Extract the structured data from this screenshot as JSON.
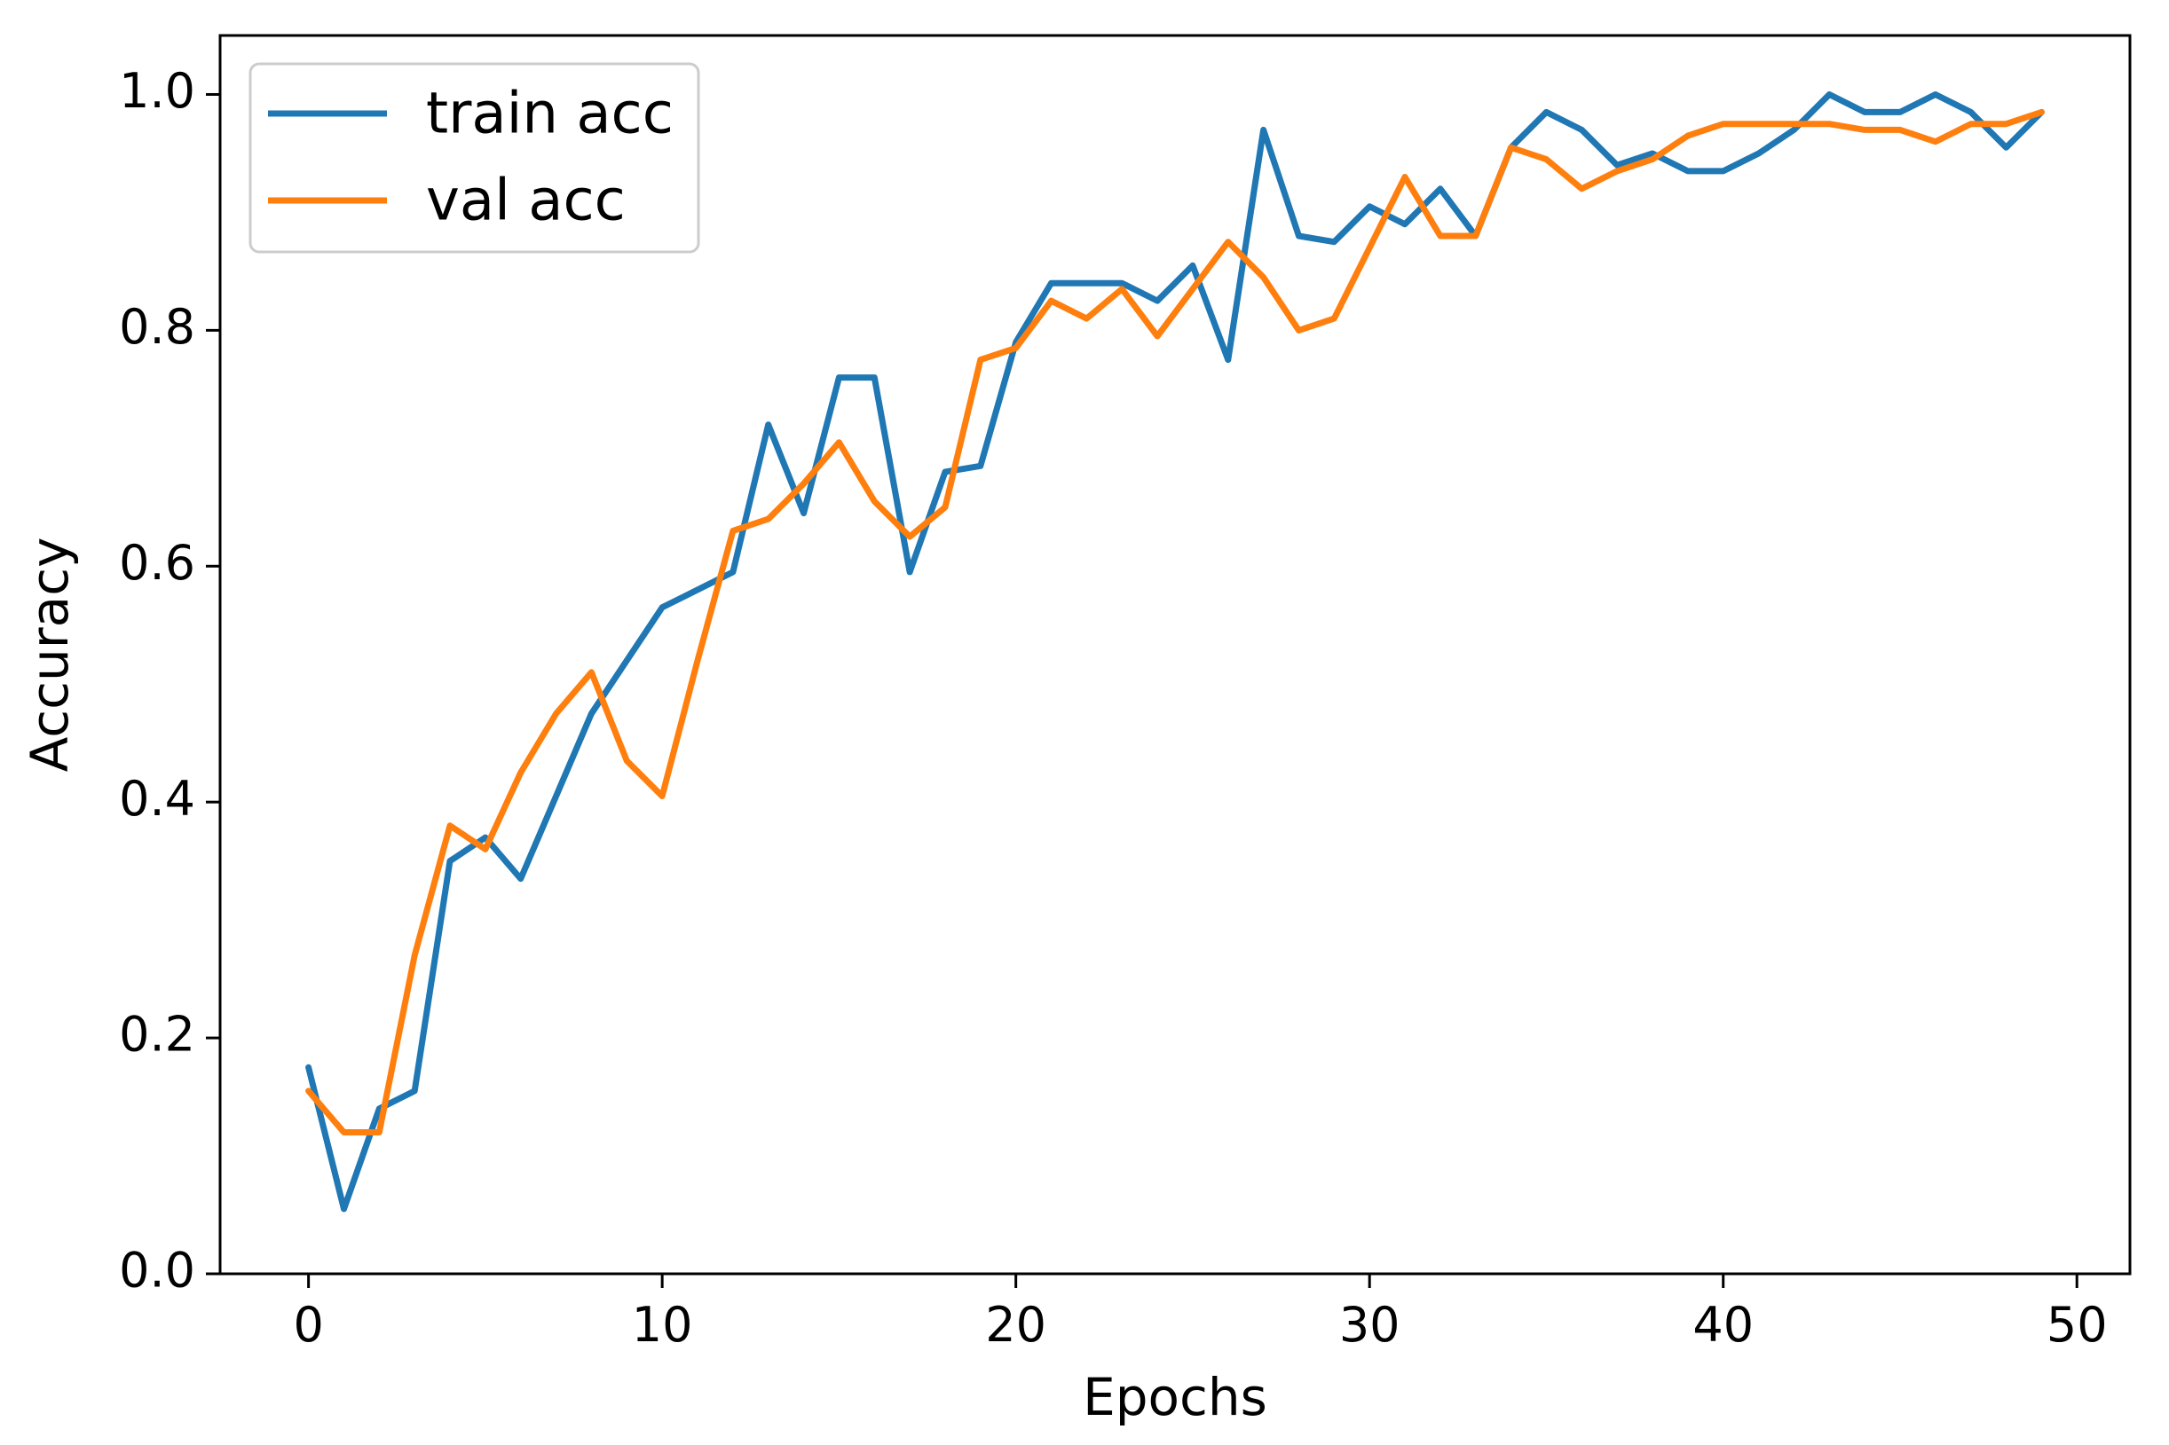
{
  "chart_data": {
    "type": "line",
    "title": "",
    "xlabel": "Epochs",
    "ylabel": "Accuracy",
    "xlim": [
      -2.5,
      51.5
    ],
    "ylim": [
      0.0,
      1.05
    ],
    "xticks": [
      0,
      10,
      20,
      30,
      40,
      50
    ],
    "xtick_labels": [
      "0",
      "10",
      "20",
      "30",
      "40",
      "50"
    ],
    "yticks": [
      0.0,
      0.2,
      0.4,
      0.6,
      0.8,
      1.0
    ],
    "ytick_labels": [
      "0.0",
      "0.2",
      "0.4",
      "0.6",
      "0.8",
      "1.0"
    ],
    "grid": false,
    "legend_position": "top-left",
    "x": [
      0,
      1,
      2,
      3,
      4,
      5,
      6,
      7,
      8,
      9,
      10,
      11,
      12,
      13,
      14,
      15,
      16,
      17,
      18,
      19,
      20,
      21,
      22,
      23,
      24,
      25,
      26,
      27,
      28,
      29,
      30,
      31,
      32,
      33,
      34,
      35,
      36,
      37,
      38,
      39,
      40,
      41,
      42,
      43,
      44,
      45,
      46,
      47,
      48,
      49
    ],
    "series": [
      {
        "name": "train acc",
        "color": "#1f77b4",
        "values": [
          0.175,
          0.055,
          0.14,
          0.155,
          0.35,
          0.37,
          0.335,
          0.405,
          0.475,
          0.52,
          0.565,
          0.58,
          0.595,
          0.72,
          0.645,
          0.76,
          0.76,
          0.595,
          0.68,
          0.685,
          0.79,
          0.84,
          0.84,
          0.84,
          0.825,
          0.855,
          0.775,
          0.97,
          0.88,
          0.875,
          0.905,
          0.89,
          0.92,
          0.88,
          0.955,
          0.985,
          0.97,
          0.94,
          0.95,
          0.935,
          0.935,
          0.95,
          0.97,
          1.0,
          0.985,
          0.985,
          1.0,
          0.985,
          0.955,
          0.985
        ]
      },
      {
        "name": "val acc",
        "color": "#ff7f0e",
        "values": [
          0.155,
          0.12,
          0.12,
          0.27,
          0.38,
          0.36,
          0.425,
          0.475,
          0.51,
          0.435,
          0.405,
          0.52,
          0.63,
          0.64,
          0.67,
          0.705,
          0.655,
          0.625,
          0.65,
          0.775,
          0.785,
          0.825,
          0.81,
          0.835,
          0.795,
          0.835,
          0.875,
          0.845,
          0.8,
          0.81,
          0.87,
          0.93,
          0.88,
          0.88,
          0.955,
          0.945,
          0.92,
          0.935,
          0.945,
          0.965,
          0.975,
          0.975,
          0.975,
          0.975,
          0.97,
          0.97,
          0.96,
          0.975,
          0.975,
          0.985
        ]
      }
    ]
  }
}
